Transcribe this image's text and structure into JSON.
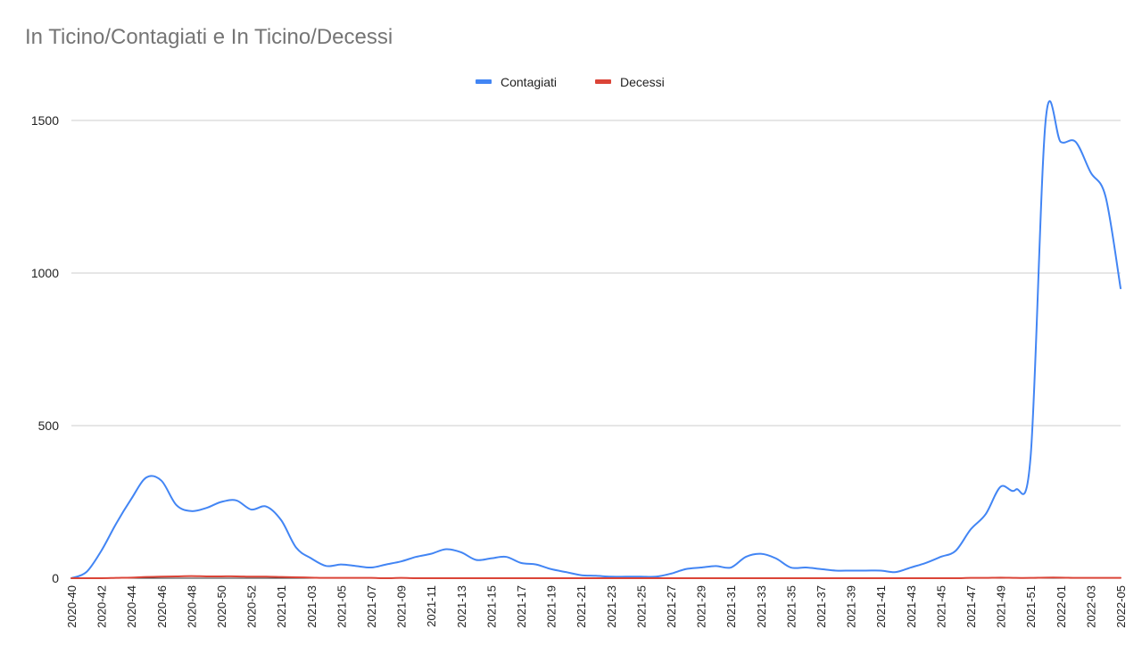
{
  "chart_data": {
    "type": "line",
    "title": "In Ticino/Contagiati e In Ticino/Decessi",
    "xlabel": "",
    "ylabel": "",
    "ylim": [
      0,
      1500
    ],
    "yticks": [
      0,
      500,
      1000,
      1500
    ],
    "grid": true,
    "legend_position": "top",
    "x": [
      "2020-40",
      "2020-41",
      "2020-42",
      "2020-43",
      "2020-44",
      "2020-45",
      "2020-46",
      "2020-47",
      "2020-48",
      "2020-49",
      "2020-50",
      "2020-51",
      "2020-52",
      "2020-53",
      "2021-01",
      "2021-02",
      "2021-03",
      "2021-04",
      "2021-05",
      "2021-06",
      "2021-07",
      "2021-08",
      "2021-09",
      "2021-10",
      "2021-11",
      "2021-12",
      "2021-13",
      "2021-14",
      "2021-15",
      "2021-16",
      "2021-17",
      "2021-18",
      "2021-19",
      "2021-20",
      "2021-21",
      "2021-22",
      "2021-23",
      "2021-24",
      "2021-25",
      "2021-26",
      "2021-27",
      "2021-28",
      "2021-29",
      "2021-30",
      "2021-31",
      "2021-32",
      "2021-33",
      "2021-34",
      "2021-35",
      "2021-36",
      "2021-37",
      "2021-38",
      "2021-39",
      "2021-40",
      "2021-41",
      "2021-42",
      "2021-43",
      "2021-44",
      "2021-45",
      "2021-46",
      "2021-47",
      "2021-48",
      "2021-49",
      "2021-50",
      "2021-51",
      "2021-52",
      "2022-01",
      "2022-02",
      "2022-03",
      "2022-04",
      "2022-05"
    ],
    "x_tick_labels": [
      "2020-40",
      "2020-42",
      "2020-44",
      "2020-46",
      "2020-48",
      "2020-50",
      "2020-52",
      "2021-01",
      "2021-03",
      "2021-05",
      "2021-07",
      "2021-09",
      "2021-11",
      "2021-13",
      "2021-15",
      "2021-17",
      "2021-19",
      "2021-21",
      "2021-23",
      "2021-25",
      "2021-27",
      "2021-29",
      "2021-31",
      "2021-33",
      "2021-35",
      "2021-37",
      "2021-39",
      "2021-41",
      "2021-43",
      "2021-45",
      "2021-47",
      "2021-49",
      "2021-51",
      "2022-01",
      "2022-03",
      "2022-05"
    ],
    "series": [
      {
        "name": "Contagiati",
        "color": "#4285f4",
        "values": [
          0,
          20,
          90,
          180,
          260,
          330,
          320,
          240,
          220,
          230,
          250,
          255,
          225,
          235,
          190,
          100,
          65,
          40,
          45,
          40,
          35,
          45,
          55,
          70,
          80,
          95,
          85,
          60,
          65,
          70,
          50,
          45,
          30,
          20,
          10,
          8,
          5,
          5,
          5,
          5,
          15,
          30,
          35,
          40,
          35,
          70,
          80,
          65,
          35,
          35,
          30,
          25,
          25,
          25,
          25,
          20,
          35,
          50,
          70,
          90,
          160,
          210,
          300,
          290,
          400,
          1500,
          1430,
          1430,
          1330,
          1250,
          950
        ]
      },
      {
        "name": "Decessi",
        "color": "#db4437",
        "values": [
          0,
          0,
          0,
          1,
          2,
          4,
          5,
          6,
          7,
          6,
          6,
          6,
          5,
          5,
          4,
          3,
          2,
          1,
          1,
          1,
          1,
          0,
          1,
          0,
          0,
          0,
          0,
          0,
          0,
          0,
          0,
          0,
          0,
          0,
          0,
          0,
          0,
          0,
          0,
          0,
          0,
          0,
          0,
          0,
          0,
          0,
          0,
          0,
          0,
          0,
          0,
          0,
          0,
          0,
          0,
          0,
          0,
          0,
          0,
          0,
          1,
          1,
          2,
          1,
          1,
          2,
          2,
          1,
          1,
          1,
          1
        ]
      }
    ]
  }
}
